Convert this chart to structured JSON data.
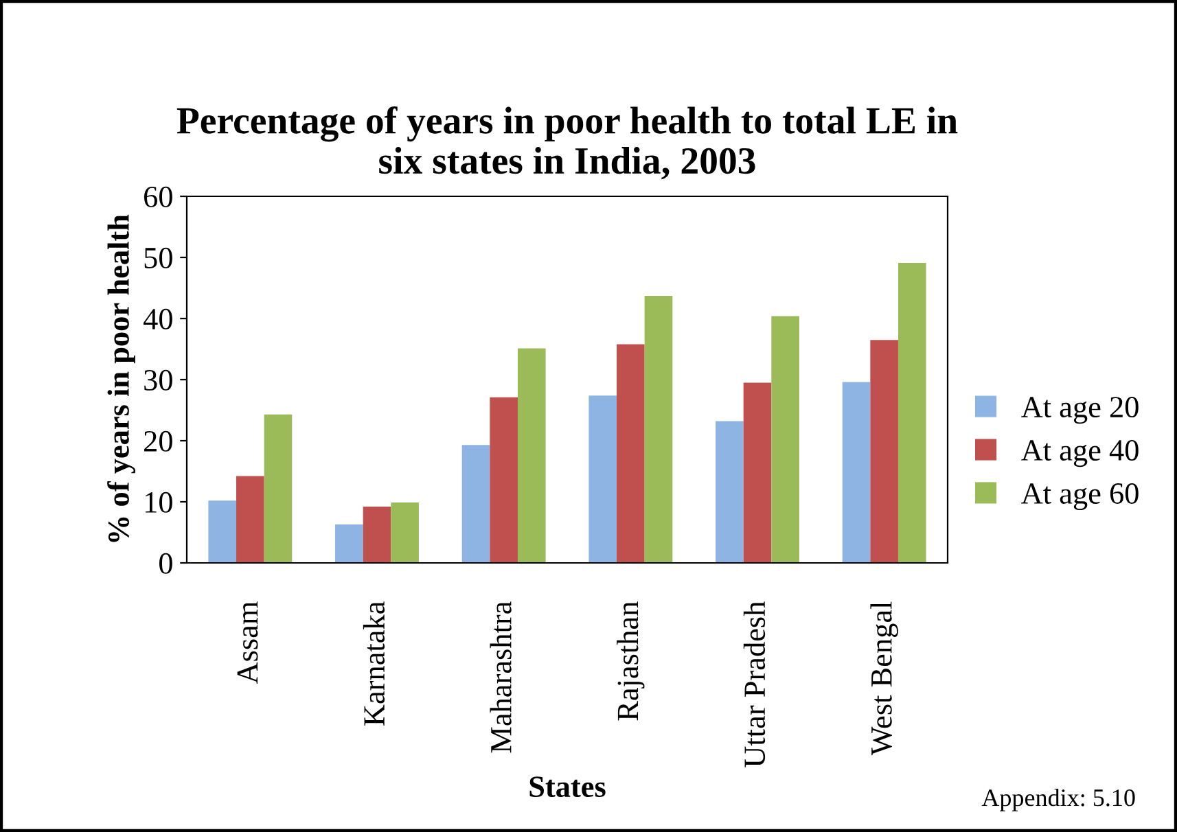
{
  "chart_data": {
    "type": "bar",
    "title": "Percentage of years in poor health to total LE in\nsix states in India, 2003",
    "xlabel": "States",
    "ylabel": "% of years in poor health",
    "categories": [
      "Assam",
      "Karnataka",
      "Maharashtra",
      "Rajasthan",
      "Uttar Pradesh",
      "West Bengal"
    ],
    "series": [
      {
        "name": "At age 20",
        "color": "#8eb4e3",
        "values": [
          10.2,
          6.3,
          19.3,
          27.4,
          23.2,
          29.6
        ]
      },
      {
        "name": "At age 40",
        "color": "#c0504d",
        "values": [
          14.2,
          9.2,
          27.1,
          35.8,
          29.5,
          36.5
        ]
      },
      {
        "name": "At age 60",
        "color": "#9bbb59",
        "values": [
          24.3,
          9.9,
          35.1,
          43.7,
          40.4,
          49.1
        ]
      }
    ],
    "ylim": [
      0,
      60
    ],
    "yticks": [
      0,
      10,
      20,
      30,
      40,
      50,
      60
    ],
    "grid": false,
    "legend": "right",
    "annotations": [
      "Appendix: 5.10"
    ]
  }
}
